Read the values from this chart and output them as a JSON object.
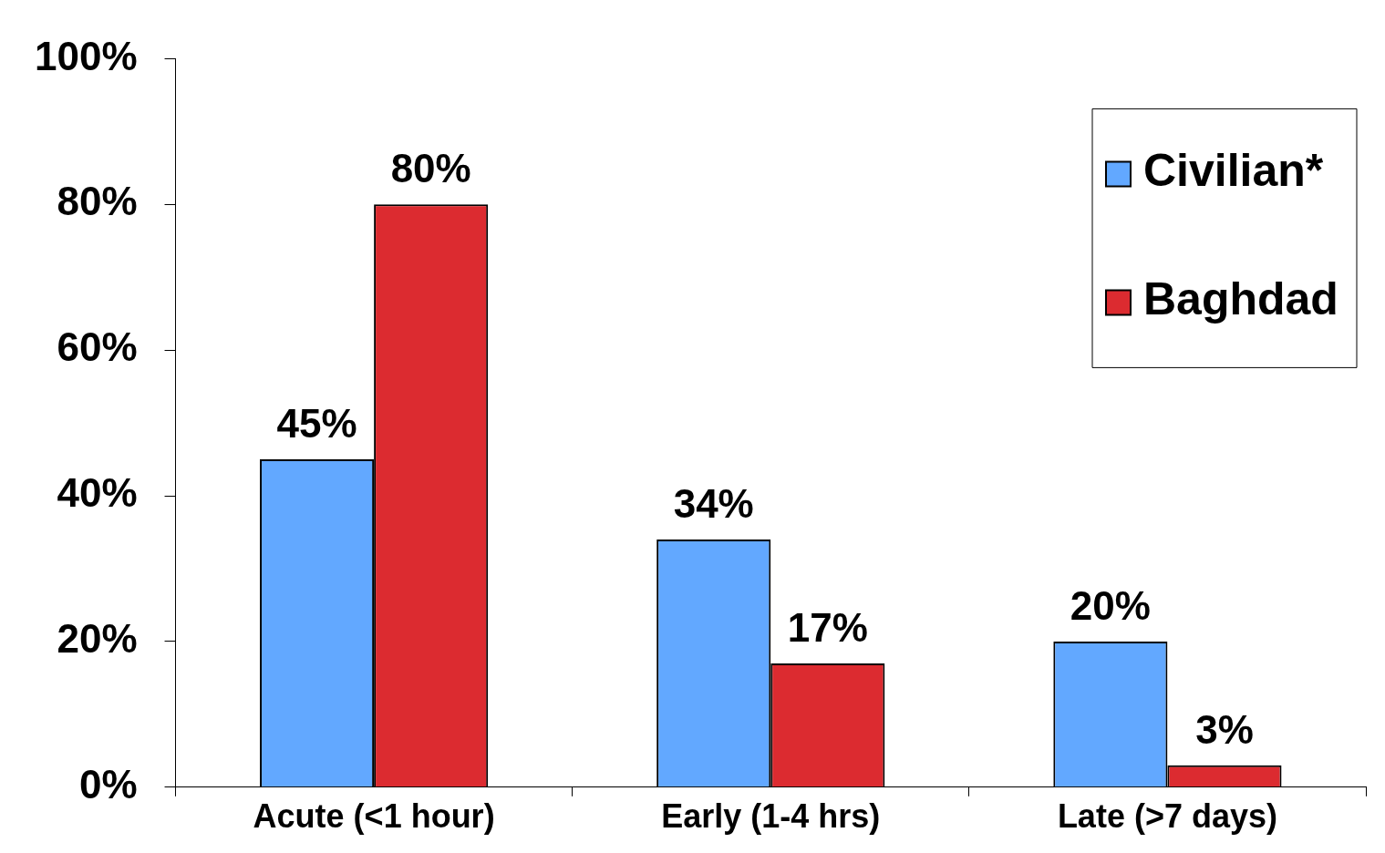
{
  "chart_data": {
    "type": "bar",
    "categories": [
      "Acute (<1 hour)",
      "Early (1-4 hrs)",
      "Late (>7 days)"
    ],
    "series": [
      {
        "name": "Civilian*",
        "color": "#62a8ff",
        "values": [
          45,
          34,
          20
        ],
        "value_labels": [
          "45%",
          "34%",
          "20%"
        ]
      },
      {
        "name": "Baghdad",
        "color": "#dc2b30",
        "values": [
          80,
          17,
          3
        ],
        "value_labels": [
          "80%",
          "17%",
          "3%"
        ]
      }
    ],
    "ylim": [
      0,
      100
    ],
    "yticks": [
      {
        "value": 0,
        "label": "0%"
      },
      {
        "value": 20,
        "label": "20%"
      },
      {
        "value": 40,
        "label": "40%"
      },
      {
        "value": 60,
        "label": "60%"
      },
      {
        "value": 80,
        "label": "80%"
      },
      {
        "value": 100,
        "label": "100%"
      }
    ],
    "grid": false,
    "legend": "top right"
  }
}
